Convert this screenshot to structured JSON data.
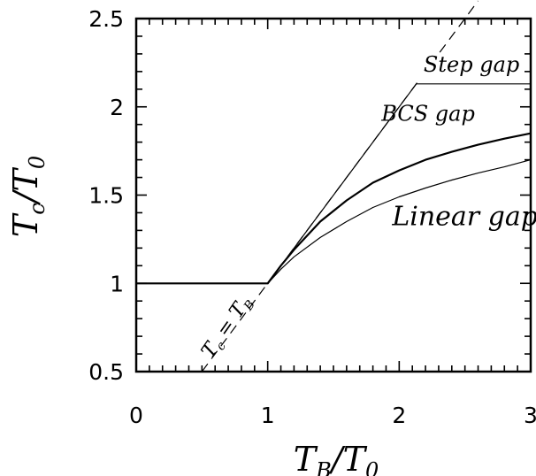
{
  "chart_data": {
    "type": "line",
    "xlabel": {
      "main": "T",
      "sub1": "B",
      "slash": "/T",
      "sub2": "0"
    },
    "ylabel": {
      "main": "T",
      "sub1": "c",
      "slash": "/T",
      "sub2": "0"
    },
    "xlim": [
      0,
      3
    ],
    "ylim": [
      0.5,
      2.5
    ],
    "x_ticks": [
      0,
      1,
      2,
      3
    ],
    "x_tick_labels": [
      "0",
      "1",
      "2",
      "3"
    ],
    "y_ticks": [
      0.5,
      1,
      1.5,
      2,
      2.5
    ],
    "y_tick_labels": [
      "0.5",
      "1",
      "1.5",
      "2",
      "2.5"
    ],
    "grid": false,
    "legend": "none",
    "series": [
      {
        "name": "Step gap",
        "style": "solid",
        "width": "thin",
        "x": [
          0,
          1,
          2.13,
          3
        ],
        "y": [
          1,
          1,
          2.13,
          2.13
        ]
      },
      {
        "name": "BCS gap",
        "style": "solid",
        "width": "thick",
        "x": [
          0,
          1,
          1.1,
          1.2,
          1.4,
          1.6,
          1.8,
          2.0,
          2.2,
          2.4,
          2.6,
          2.8,
          3.0
        ],
        "y": [
          1,
          1,
          1.1,
          1.19,
          1.35,
          1.47,
          1.57,
          1.64,
          1.7,
          1.745,
          1.785,
          1.82,
          1.85
        ]
      },
      {
        "name": "Linear gap",
        "style": "solid",
        "width": "thin",
        "x": [
          0,
          1,
          1.1,
          1.2,
          1.4,
          1.6,
          1.8,
          2.0,
          2.2,
          2.4,
          2.6,
          2.8,
          3.0
        ],
        "y": [
          1,
          1,
          1.08,
          1.15,
          1.26,
          1.35,
          1.43,
          1.49,
          1.54,
          1.585,
          1.625,
          1.66,
          1.7
        ]
      },
      {
        "name": "T_c = T_B",
        "style": "dashed",
        "width": "thin",
        "x": [
          0.5,
          2.6
        ],
        "y": [
          0.5,
          2.6
        ]
      }
    ],
    "annotations": [
      {
        "text": "Step gap",
        "x": 2.55,
        "y": 2.2
      },
      {
        "text": "BCS gap",
        "x": 2.22,
        "y": 1.92
      },
      {
        "text": "Linear gap",
        "x": 2.5,
        "y": 1.33
      },
      {
        "main": "T",
        "sub1": "c",
        "eq": " = T",
        "sub2": "B",
        "x": 0.57,
        "y": 0.57
      }
    ]
  }
}
